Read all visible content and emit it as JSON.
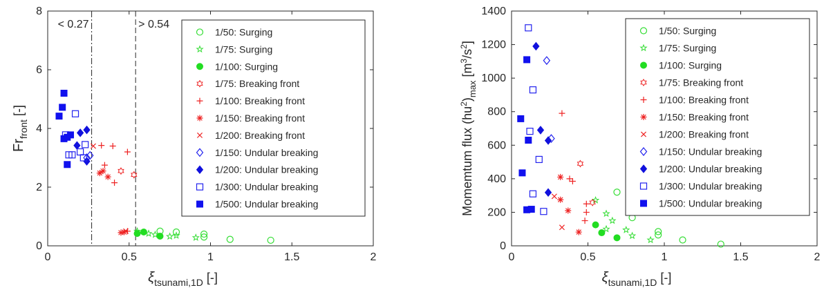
{
  "chart_data": [
    {
      "type": "scatter",
      "title": "",
      "xlabel": "ξ",
      "xlabel_sub": "tsunami,1D",
      "xlabel_unit": "[-]",
      "ylabel": "Fr",
      "ylabel_sub": "front",
      "ylabel_unit": "[-]",
      "xlim": [
        0,
        2
      ],
      "ylim": [
        0,
        8
      ],
      "xticks": [
        "0",
        "0.5",
        "1",
        "1.5",
        "2"
      ],
      "yticks": [
        "0",
        "2",
        "4",
        "6",
        "8"
      ],
      "annotations": [
        "< 0.27",
        "> 0.54"
      ],
      "vlines": [
        {
          "x": 0.27,
          "style": "dashdot"
        },
        {
          "x": 0.54,
          "style": "dashed"
        }
      ],
      "legend": "inside-top-right",
      "series": [
        {
          "name": "1/50: Surging",
          "color": "#33dd33",
          "marker": "circle-open",
          "points": [
            [
              0.69,
              0.5
            ],
            [
              0.79,
              0.47
            ],
            [
              0.96,
              0.4
            ],
            [
              0.96,
              0.3
            ],
            [
              1.12,
              0.22
            ],
            [
              1.37,
              0.19
            ]
          ]
        },
        {
          "name": "1/75: Surging",
          "color": "#33dd33",
          "marker": "star",
          "points": [
            [
              0.55,
              0.5
            ],
            [
              0.62,
              0.42
            ],
            [
              0.66,
              0.38
            ],
            [
              0.75,
              0.32
            ],
            [
              0.79,
              0.35
            ],
            [
              0.91,
              0.28
            ]
          ]
        },
        {
          "name": "1/100: Surging",
          "color": "#22dd22",
          "marker": "circle-filled",
          "points": [
            [
              0.55,
              0.42
            ],
            [
              0.59,
              0.47
            ],
            [
              0.69,
              0.33
            ]
          ]
        },
        {
          "name": "1/75: Breaking front",
          "color": "#ee2222",
          "marker": "hexagram",
          "points": [
            [
              0.45,
              2.55
            ],
            [
              0.53,
              2.42
            ]
          ]
        },
        {
          "name": "1/100: Breaking front",
          "color": "#ee2222",
          "marker": "plus",
          "points": [
            [
              0.33,
              3.42
            ],
            [
              0.4,
              3.4
            ],
            [
              0.49,
              3.2
            ],
            [
              0.35,
              2.75
            ],
            [
              0.41,
              2.15
            ],
            [
              0.49,
              0.5
            ]
          ]
        },
        {
          "name": "1/150: Breaking front",
          "color": "#ee2222",
          "marker": "asterisk",
          "points": [
            [
              0.32,
              2.48
            ],
            [
              0.34,
              2.55
            ],
            [
              0.37,
              2.35
            ],
            [
              0.45,
              0.45
            ],
            [
              0.47,
              0.47
            ]
          ]
        },
        {
          "name": "1/200: Breaking front",
          "color": "#ee2222",
          "marker": "x",
          "points": [
            [
              0.28,
              3.4
            ],
            [
              0.48,
              0.5
            ]
          ]
        },
        {
          "name": "1/150: Undular breaking",
          "color": "#2222ee",
          "marker": "diamond-open",
          "points": [
            [
              0.24,
              3.0
            ],
            [
              0.26,
              3.08
            ]
          ]
        },
        {
          "name": "1/200: Undular breaking",
          "color": "#1111dd",
          "marker": "diamond-filled",
          "points": [
            [
              0.18,
              3.42
            ],
            [
              0.2,
              3.85
            ],
            [
              0.24,
              3.95
            ],
            [
              0.24,
              2.88
            ]
          ]
        },
        {
          "name": "1/300: Undular breaking",
          "color": "#2222ee",
          "marker": "square-open",
          "points": [
            [
              0.11,
              3.78
            ],
            [
              0.13,
              3.1
            ],
            [
              0.15,
              3.1
            ],
            [
              0.17,
              4.5
            ],
            [
              0.2,
              3.2
            ],
            [
              0.23,
              3.45
            ],
            [
              0.22,
              3.0
            ]
          ]
        },
        {
          "name": "1/500: Undular breaking",
          "color": "#1111ee",
          "marker": "square-filled",
          "points": [
            [
              0.07,
              4.42
            ],
            [
              0.09,
              4.72
            ],
            [
              0.1,
              5.2
            ],
            [
              0.1,
              3.65
            ],
            [
              0.12,
              3.7
            ],
            [
              0.14,
              3.78
            ],
            [
              0.12,
              2.77
            ]
          ]
        }
      ]
    },
    {
      "type": "scatter",
      "title": "",
      "xlabel": "ξ",
      "xlabel_sub": "tsunami,1D",
      "xlabel_unit": "[-]",
      "ylabel": "Momemtum flux (hu",
      "ylabel_sup1": "2",
      "ylabel_mid": ")",
      "ylabel_sub": "max",
      "ylabel_unit": "[m",
      "ylabel_sup2": "3",
      "ylabel_unit2": "/s",
      "ylabel_sup3": "2",
      "ylabel_end": "]",
      "xlim": [
        0,
        2
      ],
      "ylim": [
        0,
        1400
      ],
      "xticks": [
        "0",
        "0.5",
        "1",
        "1.5",
        "2"
      ],
      "yticks": [
        "0",
        "200",
        "400",
        "600",
        "800",
        "1000",
        "1200",
        "1400"
      ],
      "legend": "inside-top-right",
      "series": [
        {
          "name": "1/50: Surging",
          "color": "#33dd33",
          "marker": "circle-open",
          "points": [
            [
              0.69,
              320
            ],
            [
              0.79,
              168
            ],
            [
              0.96,
              85
            ],
            [
              0.96,
              65
            ],
            [
              1.12,
              35
            ],
            [
              1.37,
              10
            ]
          ]
        },
        {
          "name": "1/75: Surging",
          "color": "#33dd33",
          "marker": "star",
          "points": [
            [
              0.55,
              272
            ],
            [
              0.62,
              192
            ],
            [
              0.62,
              100
            ],
            [
              0.66,
              150
            ],
            [
              0.75,
              95
            ],
            [
              0.79,
              60
            ],
            [
              0.91,
              35
            ]
          ]
        },
        {
          "name": "1/100: Surging",
          "color": "#22dd22",
          "marker": "circle-filled",
          "points": [
            [
              0.55,
              125
            ],
            [
              0.59,
              78
            ],
            [
              0.69,
              48
            ]
          ]
        },
        {
          "name": "1/75: Breaking front",
          "color": "#ee2222",
          "marker": "hexagram",
          "points": [
            [
              0.45,
              490
            ],
            [
              0.53,
              258
            ]
          ]
        },
        {
          "name": "1/100: Breaking front",
          "color": "#ee2222",
          "marker": "plus",
          "points": [
            [
              0.33,
              790
            ],
            [
              0.38,
              400
            ],
            [
              0.4,
              385
            ],
            [
              0.49,
              250
            ],
            [
              0.49,
              200
            ],
            [
              0.48,
              150
            ]
          ]
        },
        {
          "name": "1/150: Breaking front",
          "color": "#ee2222",
          "marker": "asterisk",
          "points": [
            [
              0.32,
              410
            ],
            [
              0.32,
              275
            ],
            [
              0.37,
              210
            ],
            [
              0.44,
              82
            ]
          ]
        },
        {
          "name": "1/200: Breaking front",
          "color": "#ee2222",
          "marker": "x",
          "points": [
            [
              0.28,
              295
            ],
            [
              0.33,
              110
            ]
          ]
        },
        {
          "name": "1/150: Undular breaking",
          "color": "#2222ee",
          "marker": "diamond-open",
          "points": [
            [
              0.23,
              1105
            ],
            [
              0.26,
              640
            ]
          ]
        },
        {
          "name": "1/200: Undular breaking",
          "color": "#1111dd",
          "marker": "diamond-filled",
          "points": [
            [
              0.16,
              1190
            ],
            [
              0.19,
              690
            ],
            [
              0.24,
              628
            ],
            [
              0.24,
              318
            ]
          ]
        },
        {
          "name": "1/300: Undular breaking",
          "color": "#2222ee",
          "marker": "square-open",
          "points": [
            [
              0.11,
              1300
            ],
            [
              0.14,
              930
            ],
            [
              0.12,
              683
            ],
            [
              0.18,
              515
            ],
            [
              0.14,
              310
            ],
            [
              0.21,
              205
            ]
          ]
        },
        {
          "name": "1/500: Undular breaking",
          "color": "#1111ee",
          "marker": "square-filled",
          "points": [
            [
              0.1,
              1110
            ],
            [
              0.06,
              758
            ],
            [
              0.11,
              630
            ],
            [
              0.07,
              435
            ],
            [
              0.1,
              215
            ],
            [
              0.13,
              218
            ]
          ]
        }
      ]
    }
  ]
}
